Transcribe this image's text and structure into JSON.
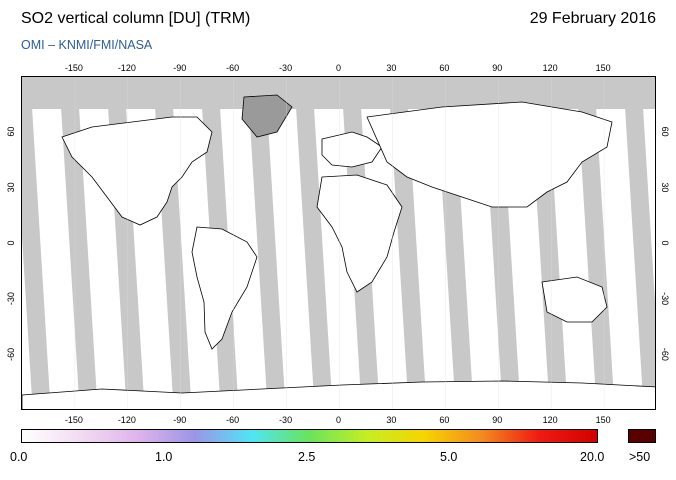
{
  "header": {
    "title": "SO2 vertical column [DU] (TRM)",
    "date": "29 February 2016",
    "credit": "OMI  –  KNMI/FMI/NASA"
  },
  "map": {
    "projection": "plate carrée",
    "lon_ticks": [
      "-150",
      "-120",
      "-90",
      "-60",
      "-30",
      "0",
      "30",
      "60",
      "90",
      "120",
      "150"
    ],
    "lat_ticks": [
      "60",
      "30",
      "0",
      "-30",
      "-60"
    ],
    "colors": {
      "ocean": "#ffffff",
      "no_data": "#c8c8c8",
      "land_no_data": "#9a9a9a",
      "coast": "#000000"
    }
  },
  "colorbar": {
    "labels": [
      "0.0",
      "1.0",
      "2.5",
      "5.0",
      "20.0",
      ">50"
    ],
    "stops": [
      "#ffffff",
      "#f3dcf3",
      "#e0b4ec",
      "#9c95e6",
      "#4fe5f5",
      "#69e45c",
      "#c6ee22",
      "#f6d400",
      "#f48a1e",
      "#ef1a12",
      "#d40000"
    ],
    "overflow_color": "#5a0000"
  }
}
